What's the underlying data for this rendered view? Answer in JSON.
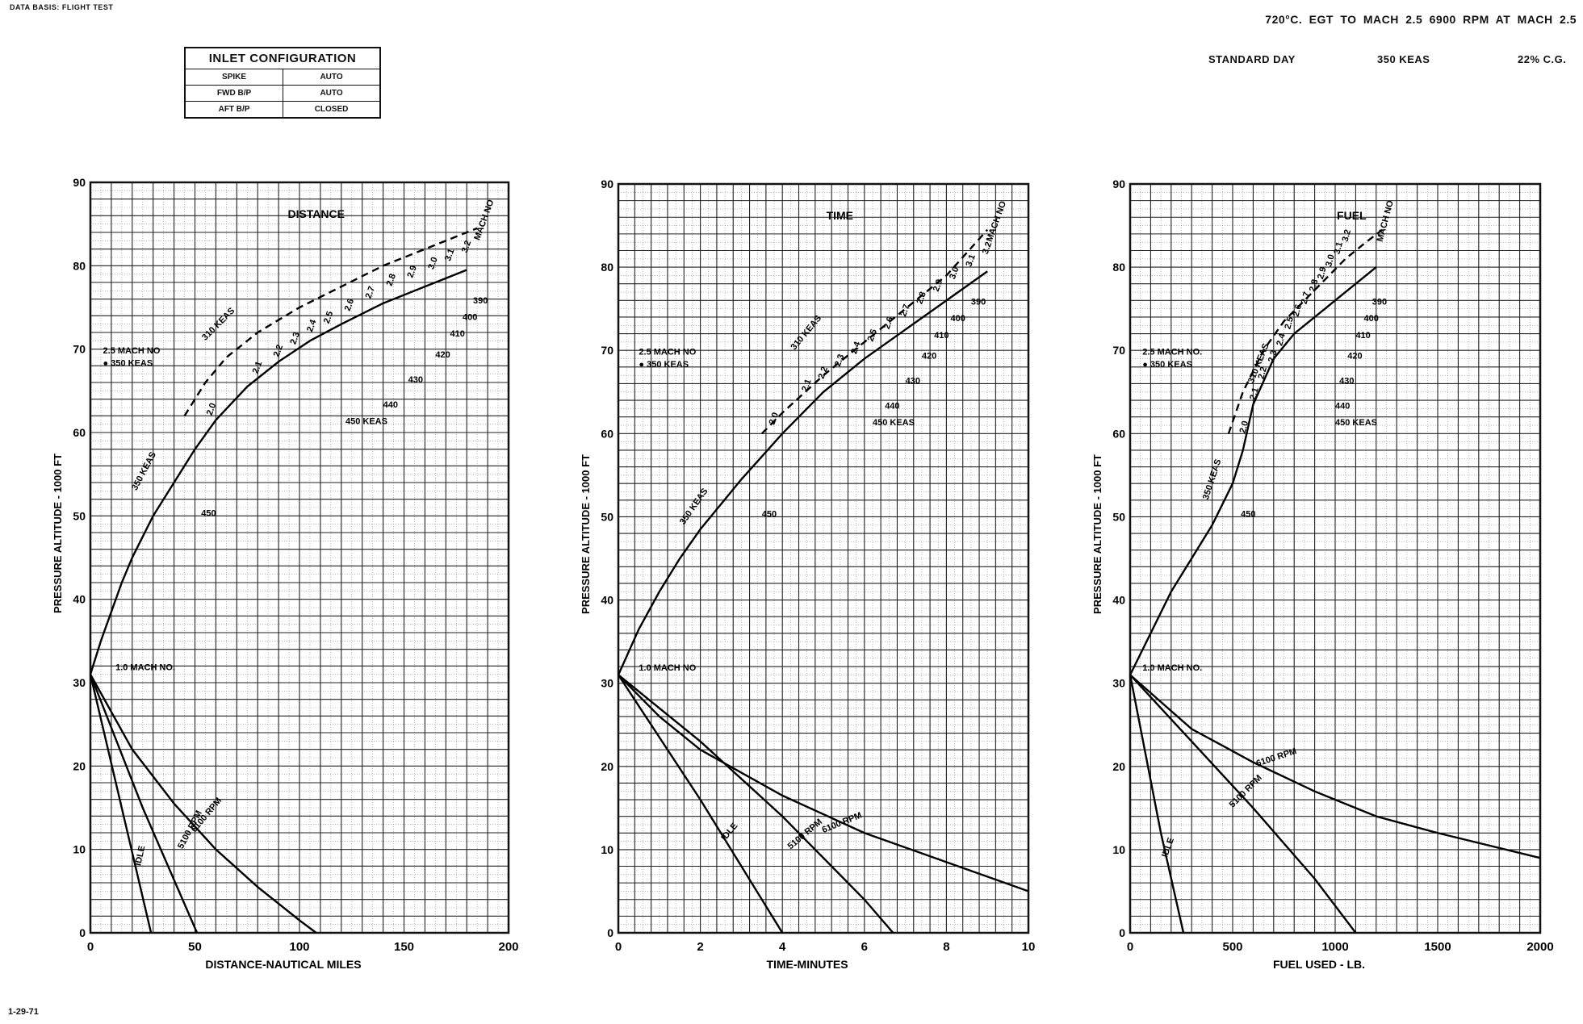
{
  "header": {
    "data_basis": "DATA BASIS: FLIGHT TEST",
    "line1": "720°C. EGT TO MACH 2.5 6900 RPM AT MACH 2.5",
    "standard_day": "STANDARD DAY",
    "keas": "350 KEAS",
    "cg": "22% C.G."
  },
  "inlet_configuration": {
    "title": "INLET CONFIGURATION",
    "rows": [
      {
        "item": "SPIKE",
        "setting": "AUTO"
      },
      {
        "item": "FWD B/P",
        "setting": "AUTO"
      },
      {
        "item": "AFT B/P",
        "setting": "CLOSED"
      }
    ]
  },
  "footer": {
    "id": "1-29-71"
  },
  "chart_data": [
    {
      "type": "line",
      "title": "DISTANCE",
      "xlabel": "DISTANCE-NAUTICAL MILES",
      "ylabel": "PRESSURE ALTITUDE - 1000 FT",
      "xlim": [
        0,
        200
      ],
      "ylim": [
        0,
        90
      ],
      "xticks": [
        0,
        50,
        100,
        150,
        200
      ],
      "yticks": [
        0,
        10,
        20,
        30,
        40,
        50,
        60,
        70,
        80,
        90
      ],
      "grid": true,
      "series": [
        {
          "name": "IDLE",
          "style": "solid",
          "x": [
            0,
            29
          ],
          "y": [
            31,
            0
          ]
        },
        {
          "name": "5100 RPM",
          "style": "solid",
          "x": [
            0,
            25,
            51
          ],
          "y": [
            31,
            15,
            0
          ]
        },
        {
          "name": "6100 RPM",
          "style": "solid",
          "x": [
            0,
            20,
            40,
            60,
            80,
            100,
            108
          ],
          "y": [
            31,
            22,
            15.5,
            10,
            5.5,
            1.5,
            0
          ]
        },
        {
          "name": "350 KEAS",
          "style": "solid",
          "x": [
            0,
            5,
            10,
            15,
            20,
            25,
            30,
            40,
            50,
            60,
            75,
            90,
            105,
            120,
            140,
            160,
            170,
            180
          ],
          "y": [
            31,
            35,
            38.5,
            42,
            45,
            47.5,
            50,
            54,
            58,
            61.5,
            65.5,
            68.5,
            71,
            73,
            75.5,
            77.5,
            78.5,
            79.5
          ]
        },
        {
          "name": "310 KEAS",
          "style": "dashed",
          "x": [
            45,
            55,
            65,
            80,
            100,
            120,
            140,
            160,
            175,
            185
          ],
          "y": [
            62,
            66,
            69,
            72,
            75,
            77.5,
            80,
            82,
            83.5,
            84.5
          ]
        }
      ],
      "labels": [
        "1.0 MACH NO.",
        "2.5 MACH NO",
        "● 350 KEAS",
        "350 KEAS",
        "310 KEAS",
        "450 KEAS",
        "450",
        "440",
        "430",
        "420",
        "410",
        "400",
        "390",
        "MACH NO",
        "2.0",
        "2.1",
        "2.2",
        "2.3",
        "2.4",
        "2.5",
        "2.6",
        "2.7",
        "2.8",
        "2.9",
        "3.0",
        "3.1",
        "3.2",
        "IDLE",
        "5100 RPM",
        "6100 RPM"
      ]
    },
    {
      "type": "line",
      "title": "TIME",
      "xlabel": "TIME-MINUTES",
      "ylabel": "PRESSURE ALTITUDE - 1000 FT",
      "xlim": [
        0,
        10
      ],
      "ylim": [
        0,
        90
      ],
      "xticks": [
        0,
        2,
        4,
        6,
        8,
        10
      ],
      "yticks": [
        0,
        10,
        20,
        30,
        40,
        50,
        60,
        70,
        80,
        90
      ],
      "grid": true,
      "series": [
        {
          "name": "IDLE",
          "style": "solid",
          "x": [
            0,
            2,
            4
          ],
          "y": [
            31,
            16,
            0
          ]
        },
        {
          "name": "5100 RPM",
          "style": "solid",
          "x": [
            0,
            2,
            4,
            6,
            6.7
          ],
          "y": [
            31,
            23,
            14,
            4,
            0
          ]
        },
        {
          "name": "6100 RPM",
          "style": "solid",
          "x": [
            0,
            1,
            2,
            4,
            6,
            8,
            10
          ],
          "y": [
            31,
            26,
            22,
            16.5,
            12,
            8.5,
            5
          ]
        },
        {
          "name": "350 KEAS",
          "style": "solid",
          "x": [
            0,
            0.5,
            1,
            1.5,
            2,
            2.5,
            3,
            4,
            5,
            6,
            7,
            8,
            9
          ],
          "y": [
            31,
            36.5,
            41,
            45,
            48.5,
            51.5,
            54.5,
            60,
            65,
            69,
            72.5,
            76,
            79.5
          ]
        },
        {
          "name": "310 KEAS",
          "style": "dashed",
          "x": [
            3.5,
            4,
            5,
            6,
            7,
            8,
            9
          ],
          "y": [
            60,
            62.5,
            67,
            71,
            75,
            79,
            84.5
          ]
        }
      ],
      "labels": [
        "1.0 MACH NO",
        "2.5 MACH NO",
        "● 350 KEAS",
        "350 KEAS",
        "310 KEAS",
        "450 KEAS",
        "450",
        "440",
        "430",
        "420",
        "410",
        "400",
        "390",
        "MACH NO",
        "2.0",
        "2.1",
        "2.2",
        "2.3",
        "2.4",
        "2.5",
        "2.6",
        "2.7",
        "2.8",
        "2.9",
        "3.0",
        "3.1",
        "3.2",
        "IDLE",
        "5100 RPM",
        "6100 RPM"
      ]
    },
    {
      "type": "line",
      "title": "FUEL",
      "xlabel": "FUEL USED - LB.",
      "ylabel": "PRESSURE ALTITUDE - 1000 FT",
      "xlim": [
        0,
        2000
      ],
      "ylim": [
        0,
        90
      ],
      "xticks": [
        0,
        500,
        1000,
        1500,
        2000
      ],
      "yticks": [
        0,
        10,
        20,
        30,
        40,
        50,
        60,
        70,
        80,
        90
      ],
      "grid": true,
      "series": [
        {
          "name": "IDLE",
          "style": "solid",
          "x": [
            0,
            150,
            260
          ],
          "y": [
            31,
            12,
            0
          ]
        },
        {
          "name": "5100 RPM",
          "style": "solid",
          "x": [
            0,
            300,
            600,
            900,
            1100
          ],
          "y": [
            31,
            23,
            15,
            6.5,
            0
          ]
        },
        {
          "name": "6100 RPM",
          "style": "solid",
          "x": [
            0,
            300,
            600,
            900,
            1200,
            1500,
            2000
          ],
          "y": [
            31,
            24.5,
            20.5,
            17,
            14,
            12,
            9
          ]
        },
        {
          "name": "350 KEAS",
          "style": "solid",
          "x": [
            0,
            100,
            200,
            300,
            400,
            500,
            550,
            600,
            700,
            800,
            900,
            1000,
            1100,
            1200
          ],
          "y": [
            31,
            36,
            41,
            45,
            49,
            54,
            58,
            63.5,
            69,
            72,
            74,
            76,
            78,
            80
          ]
        },
        {
          "name": "310 KEAS",
          "style": "dashed",
          "x": [
            480,
            550,
            650,
            750,
            850,
            950,
            1050,
            1150,
            1230
          ],
          "y": [
            60,
            65,
            70,
            73.5,
            76,
            78.5,
            81,
            83,
            84.5
          ]
        }
      ],
      "labels": [
        "1.0 MACH NO.",
        "2.5 MACH NO.",
        "● 350 KEAS",
        "350 KEAS",
        "310 KEAS",
        "450 KEAS",
        "450",
        "440",
        "430",
        "420",
        "410",
        "400",
        "390",
        "MACH NO",
        "2.0",
        "2.1",
        "2.2",
        "2.3",
        "2.4",
        "2.5",
        "2.6",
        "2.7",
        "2.8",
        "2.9",
        "3.0",
        "3.1",
        "3.2",
        "IDLE",
        "5100 RPM",
        "6100 RPM"
      ]
    }
  ]
}
